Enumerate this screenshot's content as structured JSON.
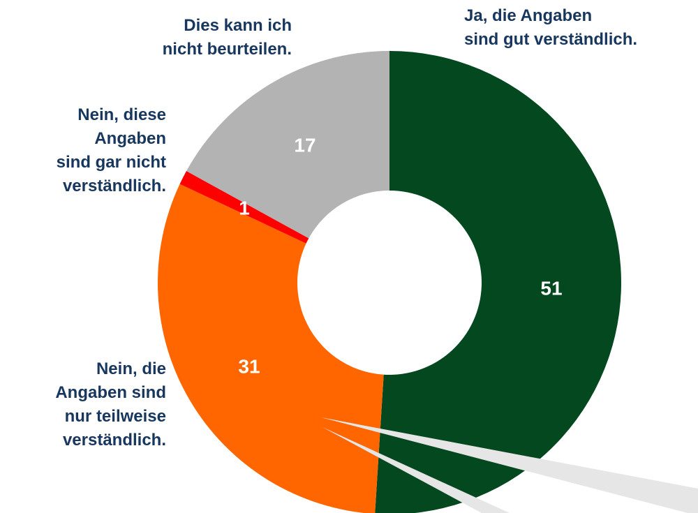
{
  "chart_data": {
    "type": "donut",
    "categories": [
      "Ja, die Angaben\nsind gut verständlich.",
      "Nein, die\nAngaben sind\nnur teilweise\nverständlich.",
      "Nein, diese\nAngaben\nsind gar nicht\nverständlich.",
      "Dies kann ich\nnicht beurteilen."
    ],
    "values": [
      51,
      31,
      1,
      17
    ],
    "colors": [
      "#03481e",
      "#ff6600",
      "#ff0000",
      "#b3b3b3"
    ]
  }
}
